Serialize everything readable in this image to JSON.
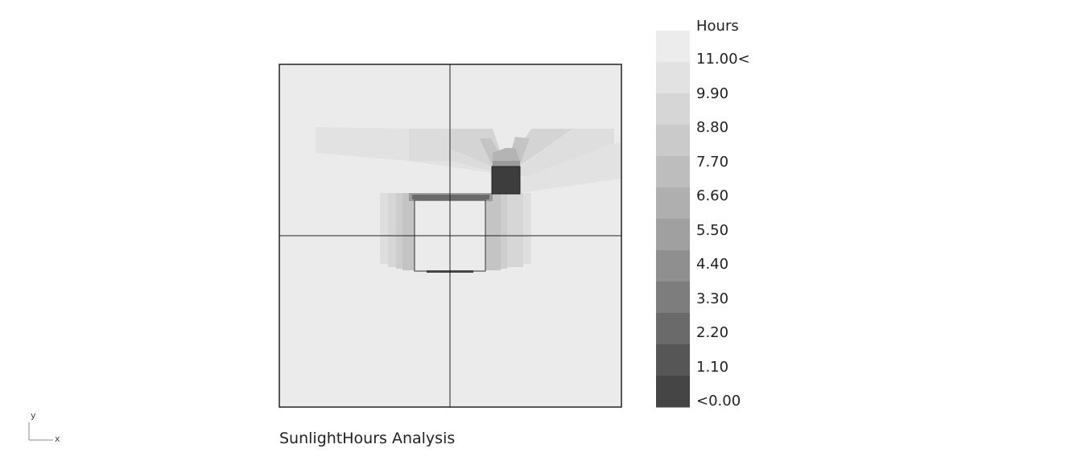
{
  "caption": "SunlightHours Analysis",
  "legend": {
    "title": "Hours",
    "labels": [
      "11.00<",
      "9.90",
      "8.80",
      "7.70",
      "6.60",
      "5.50",
      "4.40",
      "3.30",
      "2.20",
      "1.10",
      "<0.00"
    ],
    "colors": [
      "#ececec",
      "#e2e2e2",
      "#d6d6d6",
      "#cacaca",
      "#bdbdbd",
      "#afafaf",
      "#a0a0a0",
      "#8f8f8f",
      "#7d7d7d",
      "#6a6a6a",
      "#565656",
      "#454545"
    ]
  },
  "axis": {
    "x": "x",
    "y": "y"
  },
  "colors": {
    "ground": "#ebebeb",
    "frame": "#222222",
    "tall_block": "#3d3d3d"
  }
}
